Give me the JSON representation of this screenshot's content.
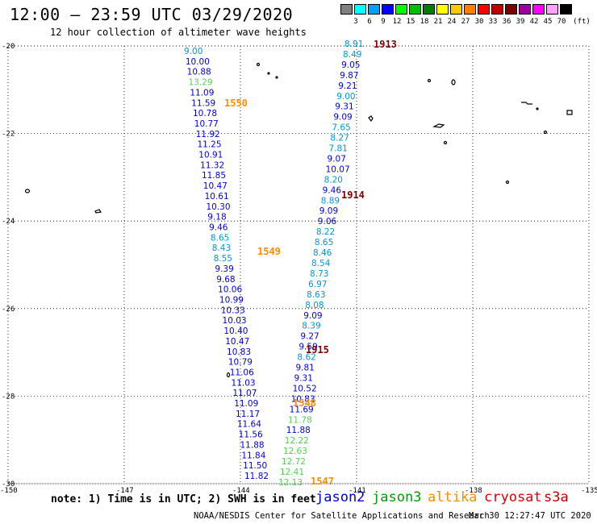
{
  "header": {
    "title": "12:00 – 23:59 UTC 03/29/2020",
    "subtitle": "12 hour collection of altimeter wave heights"
  },
  "legend": {
    "unit": "(ft)",
    "bins": [
      {
        "label": "3",
        "color": "#808080"
      },
      {
        "label": "6",
        "color": "#00ffff"
      },
      {
        "label": "9",
        "color": "#00a0ff"
      },
      {
        "label": "12",
        "color": "#0000ff"
      },
      {
        "label": "15",
        "color": "#00ff00"
      },
      {
        "label": "18",
        "color": "#00c000"
      },
      {
        "label": "21",
        "color": "#008000"
      },
      {
        "label": "24",
        "color": "#ffff00"
      },
      {
        "label": "27",
        "color": "#ffc800"
      },
      {
        "label": "30",
        "color": "#ff8000"
      },
      {
        "label": "33",
        "color": "#ff0000"
      },
      {
        "label": "36",
        "color": "#c00000"
      },
      {
        "label": "39",
        "color": "#800000"
      },
      {
        "label": "42",
        "color": "#a000a0"
      },
      {
        "label": "45",
        "color": "#ff00ff"
      },
      {
        "label": "70",
        "color": "#ffa0ff"
      },
      {
        "label": "",
        "color": "#000000"
      }
    ]
  },
  "map": {
    "lon_range": [
      -150,
      -135
    ],
    "lat_range": [
      -30,
      -20
    ],
    "lon_ticks": [
      "-150",
      "-147",
      "-144",
      "-141",
      "-138",
      "-135"
    ],
    "lat_ticks": [
      "-20",
      "-22",
      "-24",
      "-26",
      "-28",
      "-30"
    ],
    "lat_tick_values": [
      -20,
      -22,
      -24,
      -26,
      -28,
      -30
    ]
  },
  "tracks": {
    "west": [
      {
        "v": "9.00",
        "c": "#0096dc"
      },
      {
        "v": "10.00",
        "c": "#0000dc"
      },
      {
        "v": "10.88",
        "c": "#0000dc"
      },
      {
        "v": "13.29",
        "c": "#55d055"
      },
      {
        "v": "11.09",
        "c": "#0000dc"
      },
      {
        "v": "11.59",
        "c": "#0000dc"
      },
      {
        "v": "10.78",
        "c": "#0000dc"
      },
      {
        "v": "10.77",
        "c": "#0000dc"
      },
      {
        "v": "11.92",
        "c": "#0000dc"
      },
      {
        "v": "11.25",
        "c": "#0000dc"
      },
      {
        "v": "10.91",
        "c": "#0000dc"
      },
      {
        "v": "11.32",
        "c": "#0000dc"
      },
      {
        "v": "11.85",
        "c": "#0000dc"
      },
      {
        "v": "10.47",
        "c": "#0000dc"
      },
      {
        "v": "10.61",
        "c": "#0000dc"
      },
      {
        "v": "10.30",
        "c": "#0000dc"
      },
      {
        "v": "9.18",
        "c": "#0000dc"
      },
      {
        "v": "9.46",
        "c": "#0000dc"
      },
      {
        "v": "8.65",
        "c": "#0096dc"
      },
      {
        "v": "8.43",
        "c": "#0096dc"
      },
      {
        "v": "8.55",
        "c": "#0096dc"
      },
      {
        "v": "9.39",
        "c": "#0000dc"
      },
      {
        "v": "9.68",
        "c": "#0000dc"
      },
      {
        "v": "10.06",
        "c": "#0000dc"
      },
      {
        "v": "10.99",
        "c": "#0000dc"
      },
      {
        "v": "10.33",
        "c": "#0000dc"
      },
      {
        "v": "10.03",
        "c": "#0000dc"
      },
      {
        "v": "10.40",
        "c": "#0000dc"
      },
      {
        "v": "10.47",
        "c": "#0000dc"
      },
      {
        "v": "10.83",
        "c": "#0000dc"
      },
      {
        "v": "10.79",
        "c": "#0000dc"
      },
      {
        "v": "11.06",
        "c": "#0000dc"
      },
      {
        "v": "11.03",
        "c": "#0000dc"
      },
      {
        "v": "11.07",
        "c": "#0000dc"
      },
      {
        "v": "11.09",
        "c": "#0000dc"
      },
      {
        "v": "11.17",
        "c": "#0000dc"
      },
      {
        "v": "11.64",
        "c": "#0000dc"
      },
      {
        "v": "11.56",
        "c": "#0000dc"
      },
      {
        "v": "11.88",
        "c": "#0000dc"
      },
      {
        "v": "11.84",
        "c": "#0000dc"
      },
      {
        "v": "11.50",
        "c": "#0000dc"
      },
      {
        "v": "11.82",
        "c": "#0000dc"
      }
    ],
    "east": [
      {
        "v": "8.91",
        "c": "#0096dc"
      },
      {
        "v": "8.49",
        "c": "#0096dc"
      },
      {
        "v": "9.05",
        "c": "#0000dc"
      },
      {
        "v": "9.87",
        "c": "#0000dc"
      },
      {
        "v": "9.21",
        "c": "#0000dc"
      },
      {
        "v": "9.00",
        "c": "#0096dc"
      },
      {
        "v": "9.31",
        "c": "#0000dc"
      },
      {
        "v": "9.09",
        "c": "#0000dc"
      },
      {
        "v": "7.65",
        "c": "#0096dc"
      },
      {
        "v": "8.27",
        "c": "#0096dc"
      },
      {
        "v": "7.81",
        "c": "#0096dc"
      },
      {
        "v": "9.07",
        "c": "#0000dc"
      },
      {
        "v": "10.07",
        "c": "#0000dc"
      },
      {
        "v": "8.20",
        "c": "#0096dc"
      },
      {
        "v": "9.46",
        "c": "#0000dc"
      },
      {
        "v": "8.89",
        "c": "#0096dc"
      },
      {
        "v": "9.09",
        "c": "#0000dc"
      },
      {
        "v": "9.06",
        "c": "#0000dc"
      },
      {
        "v": "8.22",
        "c": "#0096dc"
      },
      {
        "v": "8.65",
        "c": "#0096dc"
      },
      {
        "v": "8.46",
        "c": "#0096dc"
      },
      {
        "v": "8.54",
        "c": "#0096dc"
      },
      {
        "v": "8.73",
        "c": "#0096dc"
      },
      {
        "v": "6.97",
        "c": "#0096dc"
      },
      {
        "v": "8.63",
        "c": "#0096dc"
      },
      {
        "v": "8.08",
        "c": "#0096dc"
      },
      {
        "v": "9.09",
        "c": "#0000dc"
      },
      {
        "v": "8.39",
        "c": "#0096dc"
      },
      {
        "v": "9.27",
        "c": "#0000dc"
      },
      {
        "v": "9.59",
        "c": "#0000dc"
      },
      {
        "v": "8.62",
        "c": "#0096dc"
      },
      {
        "v": "9.81",
        "c": "#0000dc"
      },
      {
        "v": "9.31",
        "c": "#0000dc"
      },
      {
        "v": "10.52",
        "c": "#0000dc"
      },
      {
        "v": "10.83",
        "c": "#0000dc"
      },
      {
        "v": "11.69",
        "c": "#0000dc"
      },
      {
        "v": "11.78",
        "c": "#55d055"
      },
      {
        "v": "11.88",
        "c": "#0000dc"
      },
      {
        "v": "12.22",
        "c": "#55d055"
      },
      {
        "v": "12.63",
        "c": "#55d055"
      },
      {
        "v": "12.72",
        "c": "#55d055"
      },
      {
        "v": "12.41",
        "c": "#55d055"
      },
      {
        "v": "12.13",
        "c": "#55d055"
      }
    ],
    "pass_labels": [
      {
        "text": "1913",
        "color": "#800000"
      },
      {
        "text": "1550",
        "color": "#ff8c00"
      },
      {
        "text": "1914",
        "color": "#800000"
      },
      {
        "text": "1549",
        "color": "#ff8c00"
      },
      {
        "text": "1915",
        "color": "#800000"
      },
      {
        "text": "1548",
        "color": "#ff8c00"
      },
      {
        "text": "1547",
        "color": "#ff8c00"
      }
    ]
  },
  "footer": {
    "note": "note: 1) Time is in UTC; 2) SWH is in feet",
    "satellites": [
      {
        "name": "jason2",
        "color": "#0000cd"
      },
      {
        "name": "jason3",
        "color": "#00a000"
      },
      {
        "name": "altika",
        "color": "#ff8c00"
      },
      {
        "name": "cryosat",
        "color": "#e00000"
      },
      {
        "name": "s3a",
        "color": "#c00000"
      }
    ],
    "credit": "NOAA/NESDIS Center for Satellite Applications and Research",
    "timestamp": "Mar 30 12:27:47 UTC 2020"
  }
}
